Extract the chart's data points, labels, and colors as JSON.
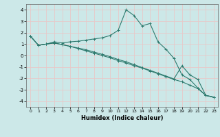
{
  "xlabel": "Humidex (Indice chaleur)",
  "background_color": "#cce8e8",
  "grid_color": "#e8c8c8",
  "line_color": "#2d7a6e",
  "xlim": [
    -0.5,
    23.5
  ],
  "ylim": [
    -4.5,
    4.5
  ],
  "yticks": [
    -4,
    -3,
    -2,
    -1,
    0,
    1,
    2,
    3,
    4
  ],
  "xticks": [
    0,
    1,
    2,
    3,
    4,
    5,
    6,
    7,
    8,
    9,
    10,
    11,
    12,
    13,
    14,
    15,
    16,
    17,
    18,
    19,
    20,
    21,
    22,
    23
  ],
  "line1_x": [
    0,
    1,
    2,
    3,
    4,
    5,
    6,
    7,
    8,
    9,
    10,
    11,
    12,
    13,
    14,
    15,
    16,
    17,
    18,
    19,
    20,
    21,
    22,
    23
  ],
  "line1_y": [
    1.7,
    0.9,
    1.0,
    1.2,
    1.1,
    1.2,
    1.25,
    1.35,
    1.45,
    1.55,
    1.75,
    2.2,
    4.0,
    3.5,
    2.6,
    2.8,
    1.2,
    0.55,
    -0.25,
    -1.7,
    -2.1,
    -2.85,
    -3.5,
    -3.65
  ],
  "line2_x": [
    0,
    1,
    2,
    3,
    4,
    5,
    6,
    7,
    8,
    9,
    10,
    11,
    12,
    13,
    14,
    15,
    16,
    17,
    18,
    19,
    20,
    21,
    22,
    23
  ],
  "line2_y": [
    1.7,
    0.9,
    1.0,
    1.1,
    0.95,
    0.8,
    0.65,
    0.5,
    0.3,
    0.1,
    -0.1,
    -0.35,
    -0.55,
    -0.8,
    -1.05,
    -1.3,
    -1.55,
    -1.8,
    -2.05,
    -0.9,
    -1.7,
    -2.1,
    -3.5,
    -3.65
  ],
  "line3_x": [
    0,
    1,
    2,
    3,
    4,
    5,
    6,
    7,
    8,
    9,
    10,
    11,
    12,
    13,
    14,
    15,
    16,
    17,
    18,
    19,
    20,
    21,
    22,
    23
  ],
  "line3_y": [
    1.7,
    0.9,
    1.0,
    1.1,
    0.95,
    0.8,
    0.6,
    0.4,
    0.2,
    0.0,
    -0.2,
    -0.45,
    -0.65,
    -0.9,
    -1.1,
    -1.35,
    -1.6,
    -1.85,
    -2.1,
    -2.3,
    -2.6,
    -2.9,
    -3.5,
    -3.65
  ]
}
